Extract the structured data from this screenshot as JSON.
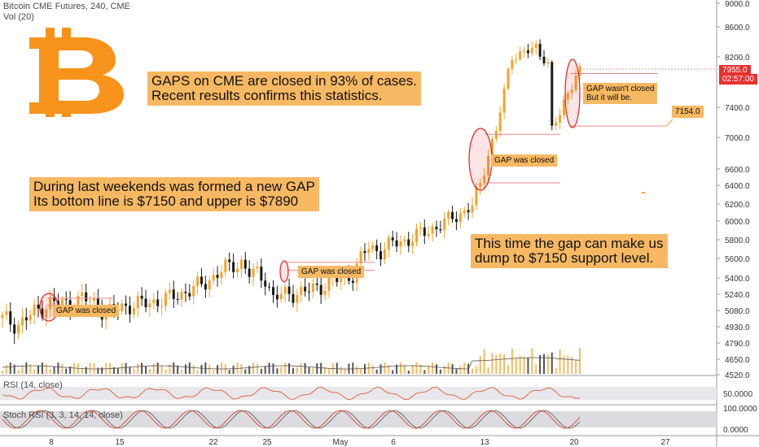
{
  "header": {
    "title": "Bitcoin CME Futures, 240, CME",
    "vol": "Vol (20)",
    "rsi": "RSI (14, close)",
    "stoch": "Stoch RSI (3, 3, 14, 14, close)"
  },
  "annotations": {
    "gaps_closed_line1": "GAPS on CME are closed in 93% of cases.",
    "gaps_closed_line2": "Recent results confirms this statistics.",
    "weekend_line1": "During last weekends was formed a new GAP",
    "weekend_line2": "Its bottom line is $7150 and upper is $7890",
    "dump_line1": "This time the gap can make us",
    "dump_line2": "dump to $7150 support level.",
    "gap_closed_1": "GAP was closed",
    "gap_closed_2": "GAP was closed",
    "gap_closed_3": "GAP was closed",
    "gap_not_closed_line1": "GAP wasn't closed",
    "gap_not_closed_line2": "But it will be.",
    "target_label": "7154.0"
  },
  "price_axis": {
    "ticks": [
      "9000.0",
      "8600.0",
      "8200.0",
      "7400.0",
      "7000.0",
      "6600.0",
      "6400.0",
      "6200.0",
      "6000.0",
      "5800.0",
      "5600.0",
      "5400.0",
      "5240.0",
      "5080.0",
      "4930.0",
      "4790.0",
      "4650.0",
      "4520.0"
    ],
    "current_price": "7955.0",
    "countdown": "02:57:00"
  },
  "rsi_axis": {
    "ticks": [
      "50.0000"
    ]
  },
  "stoch_axis": {
    "ticks": [
      "100.0000",
      "0.0000"
    ]
  },
  "time_axis": {
    "ticks": [
      "8",
      "15",
      "22",
      "25",
      "May",
      "6",
      "13",
      "20",
      "27"
    ]
  },
  "colors": {
    "up": "#f7a128",
    "down": "#1a1a1a",
    "accent": "#f6b862",
    "logo": "#f7931a",
    "ellipse": "#e02020",
    "rsi_line": "#e06b4a",
    "stoch_k": "#e0503c"
  },
  "logo": {
    "icon": "bitcoin-logo-icon",
    "glyph": "B"
  },
  "chart_data": {
    "type": "candlestick",
    "title": "Bitcoin CME Futures, 240, CME",
    "x_ticks": [
      "8",
      "15",
      "22",
      "25",
      "May",
      "6",
      "13",
      "20",
      "27"
    ],
    "price_range": [
      4520,
      9000
    ],
    "waypoints": [
      [
        0,
        5000
      ],
      [
        4,
        4950
      ],
      [
        8,
        5060
      ],
      [
        12,
        5160
      ],
      [
        16,
        5140
      ],
      [
        20,
        5200
      ],
      [
        24,
        5140
      ],
      [
        26,
        5040
      ],
      [
        30,
        5120
      ],
      [
        36,
        5150
      ],
      [
        42,
        5200
      ],
      [
        50,
        5330
      ],
      [
        56,
        5500
      ],
      [
        60,
        5560
      ],
      [
        62,
        5440
      ],
      [
        64,
        5440
      ],
      [
        66,
        5400
      ],
      [
        68,
        5200
      ],
      [
        72,
        5250
      ],
      [
        76,
        5260
      ],
      [
        80,
        5320
      ],
      [
        84,
        5380
      ],
      [
        88,
        5440
      ],
      [
        90,
        5600
      ],
      [
        92,
        5720
      ],
      [
        95,
        5680
      ],
      [
        98,
        5760
      ],
      [
        102,
        5800
      ],
      [
        106,
        5880
      ],
      [
        110,
        5960
      ],
      [
        114,
        6060
      ],
      [
        118,
        6180
      ],
      [
        120,
        6400
      ],
      [
        122,
        6800
      ],
      [
        124,
        7100
      ],
      [
        126,
        7600
      ],
      [
        128,
        8200
      ],
      [
        130,
        8250
      ],
      [
        134,
        8300
      ],
      [
        137,
        8100
      ],
      [
        138,
        7100
      ],
      [
        140,
        7300
      ],
      [
        142,
        7600
      ],
      [
        144,
        7900
      ],
      [
        145,
        7955
      ]
    ],
    "gaps": [
      {
        "label": "GAP was closed",
        "from": 5240,
        "to": 5080
      },
      {
        "label": "GAP was closed",
        "from": 5600,
        "to": 5480
      },
      {
        "label": "GAP was closed",
        "from": 7000,
        "to": 6400
      },
      {
        "label": "GAP wasn't closed",
        "from": 7890,
        "to": 7150
      }
    ],
    "last_price": 7955.0,
    "target_price": 7154.0
  }
}
